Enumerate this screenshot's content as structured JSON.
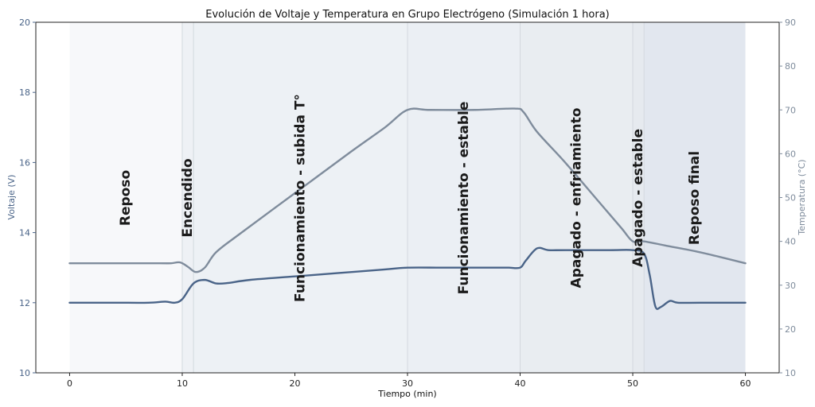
{
  "chart_data": {
    "type": "line",
    "title": "Evolución de Voltaje y Temperatura en Grupo Electrógeno (Simulación 1 hora)",
    "xlabel": "Tiempo (min)",
    "ylabel_left": "Voltaje (V)",
    "ylabel_right": "Temperatura (°C)",
    "xlim": [
      -3,
      63
    ],
    "ylim_left": [
      10,
      20
    ],
    "ylim_right": [
      10,
      90
    ],
    "xticks": [
      0,
      10,
      20,
      30,
      40,
      50,
      60
    ],
    "yticks_left": [
      10,
      12,
      14,
      16,
      18,
      20
    ],
    "yticks_right": [
      10,
      20,
      30,
      40,
      50,
      60,
      70,
      80,
      90
    ],
    "grid": false,
    "colors": {
      "voltage": "#4a6488",
      "temperature": "#7f8c9c",
      "left_axis_text": "#4a6488",
      "right_axis_text": "#7f8c9c"
    },
    "phases": [
      {
        "label": "Reposo",
        "start": 0,
        "end": 10,
        "shade": "#f7f8fa"
      },
      {
        "label": "Encendido",
        "start": 10,
        "end": 11,
        "shade": "#eef1f5"
      },
      {
        "label": "Funcionamiento - subida T°",
        "start": 11,
        "end": 30,
        "shade": "#edf1f5"
      },
      {
        "label": "Funcionamiento - estable",
        "start": 30,
        "end": 40,
        "shade": "#ebeff4"
      },
      {
        "label": "Apagado - enfriamiento",
        "start": 40,
        "end": 50,
        "shade": "#e9edf1"
      },
      {
        "label": "Apagado - estable",
        "start": 50,
        "end": 51,
        "shade": "#e6eaef"
      },
      {
        "label": "Reposo final",
        "start": 51,
        "end": 60,
        "shade": "#e2e7ef"
      }
    ],
    "series": [
      {
        "name": "Voltaje (V)",
        "axis": "left",
        "x": [
          0,
          4,
          7,
          8.5,
          9.3,
          10,
          11,
          12,
          13,
          14,
          16,
          20,
          24,
          28,
          30,
          33,
          36,
          38,
          39,
          40,
          40.5,
          41.5,
          42.5,
          44,
          48,
          50,
          51,
          51.5,
          52,
          52.5,
          53.3,
          54,
          56,
          60
        ],
        "y": [
          12,
          12,
          12,
          12.03,
          12.0,
          12.1,
          12.55,
          12.65,
          12.55,
          12.56,
          12.65,
          12.75,
          12.85,
          12.95,
          13.0,
          13.0,
          13.0,
          13.0,
          13.0,
          13.0,
          13.2,
          13.55,
          13.5,
          13.5,
          13.5,
          13.5,
          13.4,
          12.8,
          11.9,
          11.88,
          12.05,
          12.0,
          12.0,
          12.0
        ]
      },
      {
        "name": "Temperatura (°C)",
        "axis": "right",
        "x": [
          0,
          4,
          8,
          9,
          9.8,
          10.5,
          11.2,
          12,
          13,
          15,
          20,
          25,
          28,
          30,
          32,
          36,
          39.5,
          40.3,
          41.5,
          44,
          47,
          49,
          50,
          51,
          53,
          56,
          60
        ],
        "y": [
          35,
          35,
          35,
          35,
          35.2,
          34.2,
          33,
          34,
          37.5,
          41.5,
          51,
          60.5,
          66,
          70,
          70,
          70,
          70.3,
          69.5,
          65,
          58,
          49,
          43,
          40,
          40,
          39,
          37.5,
          35
        ]
      }
    ]
  }
}
